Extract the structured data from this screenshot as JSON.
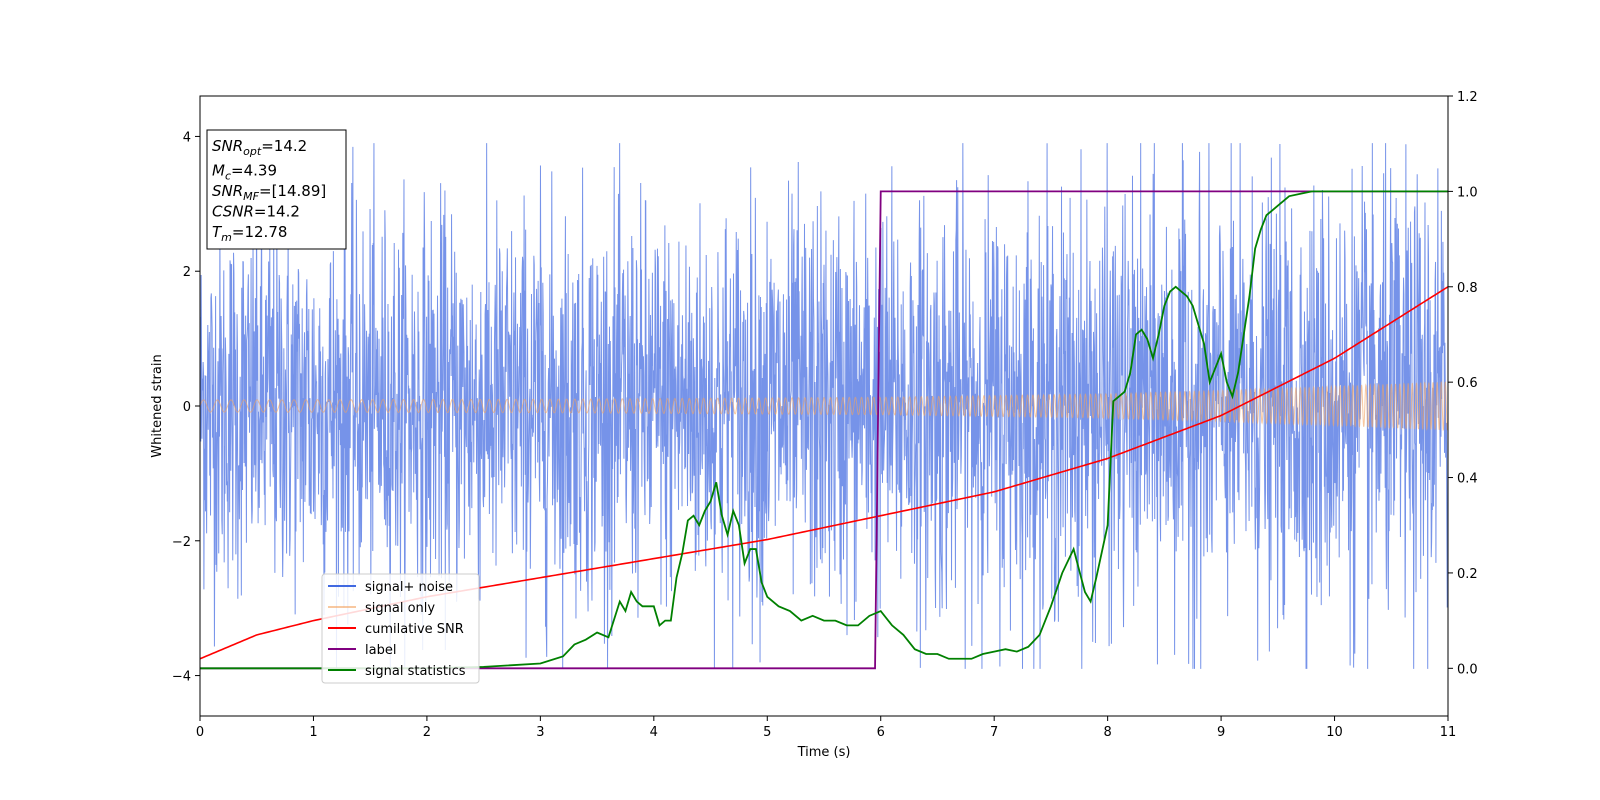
{
  "chart_data": {
    "type": "line",
    "xlabel": "Time (s)",
    "ylabel": "Whitened strain",
    "xlim": [
      0,
      11
    ],
    "ylim_left": [
      -4.6,
      4.6
    ],
    "ylim_right": [
      -0.1,
      1.2
    ],
    "x_ticks": [
      0,
      1,
      2,
      3,
      4,
      5,
      6,
      7,
      8,
      9,
      10,
      11
    ],
    "y_ticks_left": [
      -4,
      -2,
      0,
      2,
      4
    ],
    "y_ticks_right": [
      0.0,
      0.2,
      0.4,
      0.6,
      0.8,
      1.0,
      1.2
    ],
    "grid": false,
    "legend_position": "lower-left",
    "annotation": {
      "lines": [
        {
          "sym": "SNR",
          "sub": "opt",
          "text": "=14.2"
        },
        {
          "sym": "M",
          "sub": "c",
          "text": "=4.39"
        },
        {
          "sym": "SNR",
          "sub": "MF",
          "text": "=[14.89]"
        },
        {
          "sym": "CSNR",
          "sub": "",
          "text": "=14.2"
        },
        {
          "sym": "T",
          "sub": "m",
          "text": "=12.78"
        }
      ]
    },
    "series": [
      {
        "name": "signal+ noise",
        "color": "#4169e1",
        "axis": "left",
        "kind": "noise",
        "amplitude_envelope": {
          "x": [
            0,
            11
          ],
          "y": [
            2.2,
            2.6
          ]
        },
        "peak_range": [
          -3.9,
          3.9
        ]
      },
      {
        "name": "signal only",
        "color": "#f4a460",
        "axis": "left",
        "kind": "chirp",
        "amplitude_envelope": {
          "x": [
            0,
            3,
            6,
            8,
            9,
            10,
            11
          ],
          "y": [
            0.09,
            0.1,
            0.13,
            0.18,
            0.23,
            0.29,
            0.36
          ]
        }
      },
      {
        "name": "cumilative SNR",
        "color": "#ff0000",
        "axis": "right",
        "x": [
          0,
          0.5,
          1,
          2,
          3,
          4,
          5,
          6,
          7,
          8,
          9,
          10,
          11
        ],
        "y": [
          0.02,
          0.07,
          0.1,
          0.15,
          0.19,
          0.23,
          0.27,
          0.32,
          0.37,
          0.44,
          0.53,
          0.65,
          0.8
        ]
      },
      {
        "name": "label",
        "color": "#800080",
        "axis": "right",
        "x": [
          0,
          5.95,
          6.0,
          11
        ],
        "y": [
          0.0,
          0.0,
          1.0,
          1.0
        ]
      },
      {
        "name": "signal statistics",
        "color": "#008000",
        "axis": "right",
        "x": [
          0,
          0.5,
          1,
          1.5,
          2,
          2.5,
          3,
          3.2,
          3.3,
          3.4,
          3.5,
          3.6,
          3.7,
          3.75,
          3.8,
          3.85,
          3.9,
          4.0,
          4.05,
          4.1,
          4.15,
          4.2,
          4.25,
          4.3,
          4.35,
          4.4,
          4.45,
          4.5,
          4.55,
          4.6,
          4.65,
          4.7,
          4.75,
          4.8,
          4.85,
          4.9,
          4.95,
          5.0,
          5.1,
          5.2,
          5.3,
          5.4,
          5.5,
          5.6,
          5.7,
          5.8,
          5.9,
          6.0,
          6.1,
          6.2,
          6.3,
          6.4,
          6.5,
          6.6,
          6.7,
          6.8,
          6.9,
          7.0,
          7.1,
          7.2,
          7.3,
          7.4,
          7.5,
          7.6,
          7.7,
          7.8,
          7.85,
          7.9,
          8.0,
          8.05,
          8.1,
          8.15,
          8.2,
          8.25,
          8.3,
          8.35,
          8.4,
          8.45,
          8.5,
          8.55,
          8.6,
          8.65,
          8.7,
          8.75,
          8.8,
          8.85,
          8.9,
          8.95,
          9.0,
          9.05,
          9.1,
          9.15,
          9.2,
          9.25,
          9.3,
          9.35,
          9.4,
          9.5,
          9.6,
          9.7,
          9.8,
          10.0,
          10.5,
          11.0
        ],
        "y": [
          0.0,
          0.0,
          0.0,
          0.0,
          0.0,
          0.003,
          0.01,
          0.025,
          0.05,
          0.06,
          0.075,
          0.065,
          0.14,
          0.12,
          0.16,
          0.14,
          0.13,
          0.13,
          0.09,
          0.1,
          0.1,
          0.19,
          0.24,
          0.31,
          0.32,
          0.3,
          0.33,
          0.35,
          0.39,
          0.32,
          0.28,
          0.33,
          0.3,
          0.22,
          0.25,
          0.25,
          0.18,
          0.15,
          0.13,
          0.12,
          0.1,
          0.11,
          0.1,
          0.1,
          0.09,
          0.09,
          0.11,
          0.12,
          0.09,
          0.07,
          0.04,
          0.03,
          0.03,
          0.02,
          0.02,
          0.02,
          0.03,
          0.035,
          0.04,
          0.035,
          0.045,
          0.07,
          0.13,
          0.2,
          0.25,
          0.16,
          0.14,
          0.19,
          0.3,
          0.56,
          0.57,
          0.58,
          0.62,
          0.7,
          0.71,
          0.69,
          0.65,
          0.7,
          0.76,
          0.79,
          0.8,
          0.79,
          0.78,
          0.76,
          0.72,
          0.68,
          0.6,
          0.63,
          0.66,
          0.6,
          0.57,
          0.62,
          0.7,
          0.78,
          0.88,
          0.92,
          0.95,
          0.97,
          0.99,
          0.995,
          1.0,
          1.0,
          1.0,
          1.0
        ]
      }
    ]
  }
}
